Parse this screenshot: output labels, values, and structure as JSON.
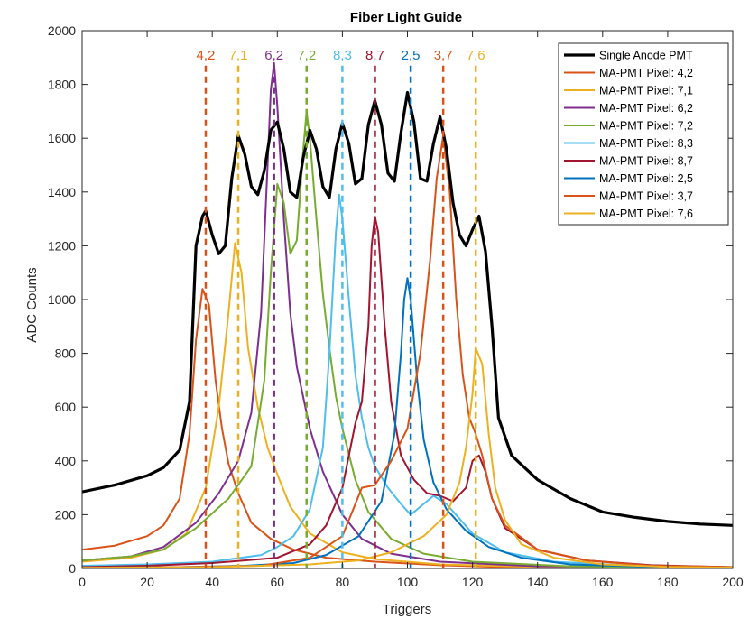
{
  "chart_data": {
    "type": "line",
    "title": "Fiber Light Guide",
    "xlabel": "Triggers",
    "ylabel": "ADC Counts",
    "xlim": [
      0,
      200
    ],
    "ylim": [
      0,
      2000
    ],
    "xticks": [
      "0",
      "20",
      "40",
      "60",
      "80",
      "100",
      "120",
      "140",
      "160",
      "180",
      "200"
    ],
    "yticks": [
      "0",
      "200",
      "400",
      "600",
      "800",
      "1000",
      "1200",
      "1400",
      "1600",
      "1800",
      "2000"
    ],
    "grid": false,
    "legend_position": "top-right",
    "single": {
      "name": "Single Anode PMT",
      "color": "#000000",
      "points": [
        [
          0,
          285
        ],
        [
          10,
          310
        ],
        [
          20,
          345
        ],
        [
          25,
          375
        ],
        [
          30,
          440
        ],
        [
          33,
          620
        ],
        [
          35,
          1200
        ],
        [
          37,
          1310
        ],
        [
          38,
          1330
        ],
        [
          40,
          1240
        ],
        [
          42,
          1170
        ],
        [
          44,
          1200
        ],
        [
          46,
          1450
        ],
        [
          48,
          1610
        ],
        [
          50,
          1540
        ],
        [
          52,
          1420
        ],
        [
          54,
          1390
        ],
        [
          56,
          1480
        ],
        [
          58,
          1630
        ],
        [
          60,
          1660
        ],
        [
          62,
          1560
        ],
        [
          64,
          1400
        ],
        [
          66,
          1380
        ],
        [
          68,
          1530
        ],
        [
          70,
          1630
        ],
        [
          72,
          1560
        ],
        [
          74,
          1420
        ],
        [
          76,
          1380
        ],
        [
          78,
          1560
        ],
        [
          80,
          1655
        ],
        [
          82,
          1580
        ],
        [
          84,
          1430
        ],
        [
          86,
          1450
        ],
        [
          88,
          1650
        ],
        [
          90,
          1740
        ],
        [
          92,
          1650
        ],
        [
          94,
          1470
        ],
        [
          96,
          1440
        ],
        [
          98,
          1620
        ],
        [
          100,
          1770
        ],
        [
          102,
          1660
        ],
        [
          104,
          1450
        ],
        [
          106,
          1440
        ],
        [
          108,
          1580
        ],
        [
          110,
          1680
        ],
        [
          112,
          1560
        ],
        [
          114,
          1360
        ],
        [
          116,
          1240
        ],
        [
          118,
          1200
        ],
        [
          120,
          1260
        ],
        [
          122,
          1310
        ],
        [
          124,
          1180
        ],
        [
          126,
          900
        ],
        [
          128,
          560
        ],
        [
          132,
          420
        ],
        [
          140,
          330
        ],
        [
          150,
          260
        ],
        [
          160,
          210
        ],
        [
          170,
          190
        ],
        [
          180,
          175
        ],
        [
          190,
          165
        ],
        [
          200,
          160
        ]
      ]
    },
    "series": [
      {
        "name": "MA-PMT Pixel: 4,2",
        "color": "#D95319",
        "points": [
          [
            0,
            70
          ],
          [
            10,
            85
          ],
          [
            20,
            120
          ],
          [
            25,
            160
          ],
          [
            30,
            260
          ],
          [
            33,
            500
          ],
          [
            35,
            850
          ],
          [
            37,
            1040
          ],
          [
            39,
            980
          ],
          [
            41,
            700
          ],
          [
            43,
            520
          ],
          [
            45,
            390
          ],
          [
            48,
            280
          ],
          [
            52,
            170
          ],
          [
            58,
            110
          ],
          [
            65,
            70
          ],
          [
            75,
            40
          ],
          [
            90,
            25
          ],
          [
            110,
            12
          ],
          [
            130,
            5
          ],
          [
            160,
            3
          ],
          [
            200,
            2
          ]
        ]
      },
      {
        "name": "MA-PMT Pixel: 7,1",
        "color": "#EDB120",
        "points": [
          [
            0,
            25
          ],
          [
            15,
            40
          ],
          [
            25,
            70
          ],
          [
            32,
            130
          ],
          [
            38,
            300
          ],
          [
            42,
            600
          ],
          [
            45,
            950
          ],
          [
            47,
            1210
          ],
          [
            49,
            1100
          ],
          [
            51,
            820
          ],
          [
            54,
            600
          ],
          [
            57,
            450
          ],
          [
            60,
            350
          ],
          [
            64,
            230
          ],
          [
            70,
            130
          ],
          [
            80,
            60
          ],
          [
            90,
            35
          ],
          [
            110,
            15
          ],
          [
            140,
            6
          ],
          [
            200,
            2
          ]
        ]
      },
      {
        "name": "MA-PMT Pixel: 6,2",
        "color": "#7E2F8E",
        "points": [
          [
            0,
            30
          ],
          [
            15,
            45
          ],
          [
            25,
            80
          ],
          [
            35,
            170
          ],
          [
            42,
            280
          ],
          [
            48,
            400
          ],
          [
            52,
            580
          ],
          [
            55,
            950
          ],
          [
            57,
            1500
          ],
          [
            58,
            1780
          ],
          [
            59,
            1880
          ],
          [
            60,
            1720
          ],
          [
            62,
            1300
          ],
          [
            64,
            950
          ],
          [
            66,
            750
          ],
          [
            70,
            520
          ],
          [
            74,
            360
          ],
          [
            80,
            200
          ],
          [
            86,
            110
          ],
          [
            95,
            55
          ],
          [
            110,
            25
          ],
          [
            140,
            8
          ],
          [
            200,
            3
          ]
        ]
      },
      {
        "name": "MA-PMT Pixel: 7,2",
        "color": "#77AC30",
        "points": [
          [
            0,
            30
          ],
          [
            15,
            45
          ],
          [
            25,
            70
          ],
          [
            35,
            150
          ],
          [
            45,
            260
          ],
          [
            52,
            380
          ],
          [
            56,
            700
          ],
          [
            58,
            1100
          ],
          [
            60,
            1430
          ],
          [
            62,
            1360
          ],
          [
            64,
            1170
          ],
          [
            66,
            1220
          ],
          [
            68,
            1560
          ],
          [
            69,
            1700
          ],
          [
            70,
            1600
          ],
          [
            72,
            1300
          ],
          [
            74,
            1020
          ],
          [
            76,
            820
          ],
          [
            78,
            640
          ],
          [
            80,
            520
          ],
          [
            84,
            330
          ],
          [
            88,
            210
          ],
          [
            95,
            110
          ],
          [
            105,
            55
          ],
          [
            120,
            25
          ],
          [
            150,
            8
          ],
          [
            200,
            3
          ]
        ]
      },
      {
        "name": "MA-PMT Pixel: 8,3",
        "color": "#4DBEEE",
        "points": [
          [
            0,
            10
          ],
          [
            20,
            15
          ],
          [
            40,
            25
          ],
          [
            55,
            50
          ],
          [
            60,
            80
          ],
          [
            65,
            120
          ],
          [
            70,
            220
          ],
          [
            74,
            450
          ],
          [
            76,
            800
          ],
          [
            78,
            1250
          ],
          [
            79,
            1390
          ],
          [
            80,
            1300
          ],
          [
            82,
            1000
          ],
          [
            84,
            720
          ],
          [
            86,
            560
          ],
          [
            88,
            450
          ],
          [
            90,
            380
          ],
          [
            94,
            300
          ],
          [
            98,
            240
          ],
          [
            101,
            200
          ],
          [
            104,
            230
          ],
          [
            108,
            270
          ],
          [
            112,
            240
          ],
          [
            120,
            130
          ],
          [
            130,
            60
          ],
          [
            145,
            25
          ],
          [
            170,
            10
          ],
          [
            200,
            5
          ]
        ]
      },
      {
        "name": "MA-PMT Pixel: 8,7",
        "color": "#A2142F",
        "points": [
          [
            0,
            5
          ],
          [
            20,
            10
          ],
          [
            40,
            20
          ],
          [
            60,
            40
          ],
          [
            70,
            90
          ],
          [
            75,
            160
          ],
          [
            80,
            300
          ],
          [
            84,
            540
          ],
          [
            86,
            620
          ],
          [
            88,
            900
          ],
          [
            89,
            1200
          ],
          [
            90,
            1310
          ],
          [
            91,
            1250
          ],
          [
            93,
            900
          ],
          [
            95,
            620
          ],
          [
            98,
            420
          ],
          [
            102,
            330
          ],
          [
            106,
            280
          ],
          [
            110,
            270
          ],
          [
            114,
            250
          ],
          [
            118,
            300
          ],
          [
            120,
            400
          ],
          [
            122,
            420
          ],
          [
            124,
            360
          ],
          [
            126,
            260
          ],
          [
            130,
            150
          ],
          [
            140,
            70
          ],
          [
            155,
            30
          ],
          [
            175,
            12
          ],
          [
            200,
            5
          ]
        ]
      },
      {
        "name": "MA-PMT Pixel: 2,5",
        "color": "#0072BD",
        "points": [
          [
            0,
            3
          ],
          [
            30,
            5
          ],
          [
            50,
            10
          ],
          [
            65,
            20
          ],
          [
            75,
            50
          ],
          [
            85,
            120
          ],
          [
            92,
            250
          ],
          [
            96,
            500
          ],
          [
            98,
            800
          ],
          [
            99,
            1000
          ],
          [
            100,
            1080
          ],
          [
            101,
            1000
          ],
          [
            103,
            700
          ],
          [
            105,
            480
          ],
          [
            108,
            320
          ],
          [
            112,
            220
          ],
          [
            118,
            140
          ],
          [
            125,
            80
          ],
          [
            135,
            40
          ],
          [
            150,
            15
          ],
          [
            175,
            6
          ],
          [
            200,
            3
          ]
        ]
      },
      {
        "name": "MA-PMT Pixel: 3,7",
        "color": "#D95319",
        "points": [
          [
            0,
            3
          ],
          [
            30,
            5
          ],
          [
            55,
            10
          ],
          [
            70,
            40
          ],
          [
            80,
            120
          ],
          [
            86,
            300
          ],
          [
            90,
            310
          ],
          [
            95,
            400
          ],
          [
            100,
            520
          ],
          [
            104,
            800
          ],
          [
            107,
            1150
          ],
          [
            109,
            1450
          ],
          [
            111,
            1610
          ],
          [
            113,
            1400
          ],
          [
            115,
            1000
          ],
          [
            117,
            720
          ],
          [
            119,
            560
          ],
          [
            121,
            500
          ],
          [
            123,
            420
          ],
          [
            126,
            260
          ],
          [
            130,
            160
          ],
          [
            140,
            70
          ],
          [
            155,
            30
          ],
          [
            175,
            10
          ],
          [
            200,
            5
          ]
        ]
      },
      {
        "name": "MA-PMT Pixel: 7,6",
        "color": "#EDB120",
        "points": [
          [
            0,
            2
          ],
          [
            40,
            5
          ],
          [
            70,
            15
          ],
          [
            85,
            30
          ],
          [
            95,
            60
          ],
          [
            105,
            120
          ],
          [
            112,
            200
          ],
          [
            116,
            320
          ],
          [
            118,
            450
          ],
          [
            120,
            650
          ],
          [
            121,
            820
          ],
          [
            123,
            760
          ],
          [
            125,
            500
          ],
          [
            127,
            300
          ],
          [
            130,
            180
          ],
          [
            135,
            90
          ],
          [
            145,
            40
          ],
          [
            160,
            15
          ],
          [
            180,
            6
          ],
          [
            200,
            3
          ]
        ]
      }
    ],
    "pixel_markers": [
      {
        "label": "4,2",
        "x": 38,
        "color": "#D95319"
      },
      {
        "label": "7,1",
        "x": 48,
        "color": "#EDB120"
      },
      {
        "label": "6,2",
        "x": 59,
        "color": "#7E2F8E"
      },
      {
        "label": "7,2",
        "x": 69,
        "color": "#77AC30"
      },
      {
        "label": "8,3",
        "x": 80,
        "color": "#4DBEEE"
      },
      {
        "label": "8,7",
        "x": 90,
        "color": "#A2142F"
      },
      {
        "label": "2,5",
        "x": 101,
        "color": "#0072BD"
      },
      {
        "label": "3,7",
        "x": 111,
        "color": "#D95319"
      },
      {
        "label": "7,6",
        "x": 121,
        "color": "#EDB120"
      }
    ],
    "marker_top_y": 1870
  }
}
